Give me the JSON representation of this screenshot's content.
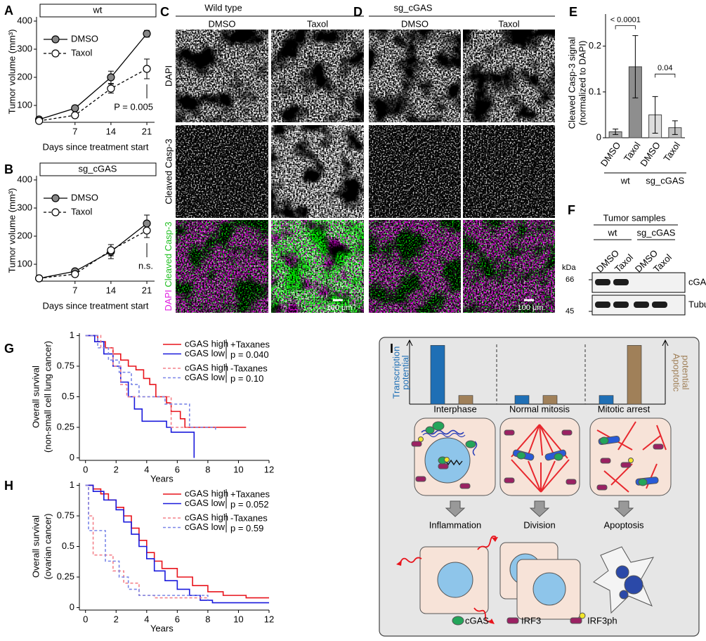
{
  "chart_data": [
    {
      "label": "A",
      "type": "line",
      "title": "wt",
      "xlabel": "Days since treatment start",
      "ylabel": "Tumor volume (mm³)",
      "x": [
        0,
        7,
        14,
        21
      ],
      "xlim": [
        -0.5,
        22.5
      ],
      "xticks": [
        7,
        14,
        21
      ],
      "ylim": [
        40,
        400
      ],
      "yticks": [
        100,
        200,
        300,
        400
      ],
      "series": [
        {
          "name": "DMSO",
          "color": "#000000",
          "marker_fill": "#888888",
          "line_style": "solid",
          "values": [
            50,
            90,
            200,
            355
          ],
          "errors": [
            6,
            10,
            22,
            12
          ]
        },
        {
          "name": "Taxol",
          "color": "#000000",
          "marker_fill": "#ffffff",
          "line_style": "dashed",
          "values": [
            45,
            65,
            160,
            230
          ],
          "errors": [
            5,
            6,
            16,
            35
          ]
        }
      ],
      "annotation": "P = 0.005"
    },
    {
      "label": "B",
      "type": "line",
      "title": "sg_cGAS",
      "xlabel": "Days since treatment start",
      "ylabel": "Tumor volume (mm³)",
      "x": [
        0,
        7,
        14,
        21
      ],
      "xlim": [
        -0.5,
        22.5
      ],
      "xticks": [
        7,
        14,
        21
      ],
      "ylim": [
        40,
        400
      ],
      "yticks": [
        100,
        200,
        300,
        400
      ],
      "series": [
        {
          "name": "DMSO",
          "color": "#000000",
          "marker_fill": "#888888",
          "line_style": "solid",
          "values": [
            50,
            75,
            145,
            245
          ],
          "errors": [
            5,
            8,
            25,
            30
          ]
        },
        {
          "name": "Taxol",
          "color": "#000000",
          "marker_fill": "#ffffff",
          "line_style": "dashed",
          "values": [
            50,
            65,
            150,
            220
          ],
          "errors": [
            5,
            6,
            20,
            25
          ]
        }
      ],
      "annotation": "n.s."
    },
    {
      "label": "E",
      "type": "bar",
      "ylabel": [
        "Cleaved Casp-3 signal",
        "(normalized to DAPI)"
      ],
      "categories": [
        "DMSO",
        "Taxol",
        "DMSO",
        "Taxol"
      ],
      "groups": [
        "wt",
        "sg_cGAS"
      ],
      "values": [
        0.013,
        0.155,
        0.05,
        0.022
      ],
      "errors": [
        0.006,
        0.068,
        0.04,
        0.015
      ],
      "colors": [
        "#aaaaaa",
        "#8e8e8e",
        "#dddddd",
        "#c2c2c2"
      ],
      "ylim": [
        0,
        0.27
      ],
      "yticks": [
        0,
        0.1,
        0.2
      ],
      "annotations": [
        "< 0.0001",
        "0.04"
      ]
    },
    {
      "label": "G",
      "type": "survival",
      "xlabel": "Years",
      "ylabel": [
        "Overall survival",
        "(non-small cell lung cancer)"
      ],
      "xlim": [
        -0.4,
        12
      ],
      "xticks": [
        0,
        2,
        4,
        6,
        8,
        10,
        12
      ],
      "ylim": [
        -0.02,
        1.02
      ],
      "yticks": [
        0,
        0.25,
        0.5,
        0.75,
        1
      ],
      "series": [
        {
          "name": "cGAS high",
          "color": "#e8141c",
          "line_style": "solid",
          "x": [
            0,
            0.8,
            1.3,
            1.8,
            2.3,
            2.8,
            3.3,
            3.8,
            4.2,
            4.6,
            5.3,
            5.6,
            6.2,
            6.5,
            10.5
          ],
          "values": [
            1,
            0.95,
            0.9,
            0.85,
            0.8,
            0.75,
            0.72,
            0.65,
            0.6,
            0.5,
            0.45,
            0.38,
            0.32,
            0.25,
            0.25
          ]
        },
        {
          "name": "cGAS low",
          "color": "#1a1adc",
          "line_style": "solid",
          "x": [
            0,
            0.6,
            1.2,
            1.8,
            2.3,
            2.8,
            3.2,
            3.7,
            5.3,
            5.6,
            7.0,
            7.1
          ],
          "values": [
            1,
            0.95,
            0.85,
            0.75,
            0.62,
            0.5,
            0.4,
            0.3,
            0.25,
            0.21,
            0.21,
            0
          ]
        },
        {
          "name": "cGAS high",
          "color": "#f4818a",
          "line_style": "dashed",
          "x": [
            0,
            1,
            1.8,
            2.3,
            2.7,
            5.5,
            5.6,
            8
          ],
          "values": [
            1,
            0.9,
            0.75,
            0.6,
            0.5,
            0.5,
            0.25,
            0.25
          ]
        },
        {
          "name": "cGAS low",
          "color": "#7a86e8",
          "line_style": "dashed",
          "x": [
            0,
            0.8,
            1.5,
            2.2,
            3,
            3.5,
            5.2,
            6.8,
            8.5
          ],
          "values": [
            1,
            0.9,
            0.8,
            0.7,
            0.6,
            0.5,
            0.44,
            0.25,
            0.22
          ]
        }
      ],
      "legend_groups": [
        {
          "name": "+Taxanes",
          "p": "p = 0.040"
        },
        {
          "name": "-Taxanes",
          "p": "p = 0.10"
        }
      ]
    },
    {
      "label": "H",
      "type": "survival",
      "xlabel": "Years",
      "ylabel": [
        "Overall survival",
        "(ovarian cancer)"
      ],
      "xlim": [
        -0.4,
        12
      ],
      "xticks": [
        0,
        2,
        4,
        6,
        8,
        10,
        12
      ],
      "ylim": [
        -0.02,
        1.02
      ],
      "yticks": [
        0,
        0.25,
        0.5,
        0.75,
        1
      ],
      "series": [
        {
          "name": "cGAS high",
          "color": "#e8141c",
          "line_style": "solid",
          "x": [
            0,
            0.5,
            1,
            1.5,
            2,
            2.5,
            3,
            3.5,
            4,
            4.5,
            5,
            6,
            7,
            8,
            9,
            10.5,
            12
          ],
          "values": [
            1,
            0.97,
            0.93,
            0.88,
            0.82,
            0.75,
            0.65,
            0.55,
            0.45,
            0.38,
            0.32,
            0.25,
            0.18,
            0.13,
            0.1,
            0.08,
            0.08
          ]
        },
        {
          "name": "cGAS low",
          "color": "#1a1adc",
          "line_style": "solid",
          "x": [
            0,
            0.5,
            1.2,
            2,
            2.5,
            3,
            3.5,
            4,
            4.5,
            5.2,
            6,
            6.8,
            7.5,
            8.3,
            12
          ],
          "values": [
            1,
            0.95,
            0.88,
            0.8,
            0.7,
            0.6,
            0.5,
            0.4,
            0.3,
            0.22,
            0.15,
            0.1,
            0.06,
            0.04,
            0.04
          ]
        },
        {
          "name": "cGAS high",
          "color": "#f4818a",
          "line_style": "dashed",
          "x": [
            0,
            0.2,
            0.5,
            1.8,
            2.5,
            3.5,
            4.5,
            8
          ],
          "values": [
            1,
            0.75,
            0.43,
            0.3,
            0.2,
            0.1,
            0.08,
            0.08
          ]
        },
        {
          "name": "cGAS low",
          "color": "#7a86e8",
          "line_style": "dashed",
          "x": [
            0,
            0.2,
            1.3,
            2.2,
            2.8,
            3.5,
            8
          ],
          "values": [
            1,
            0.63,
            0.38,
            0.25,
            0.15,
            0.1,
            0.06
          ]
        }
      ],
      "legend_groups": [
        {
          "name": "+Taxanes",
          "p": "p = 0.052"
        },
        {
          "name": "-Taxanes",
          "p": "p = 0.59"
        }
      ]
    }
  ],
  "panels": {
    "C": {
      "label": "C",
      "title": "Wild type",
      "columns": [
        "DMSO",
        "Taxol"
      ],
      "rows": [
        "DAPI",
        "Cleaved Casp-3"
      ],
      "merge_label": [
        "DAPI",
        "Cleaved Casp-3"
      ],
      "scale_bar": "100 μm"
    },
    "D": {
      "label": "D",
      "title": "sg_cGAS",
      "columns": [
        "DMSO",
        "Taxol"
      ],
      "scale_bar": "100 μm"
    },
    "F": {
      "label": "F",
      "title": "Tumor samples",
      "groups": [
        "wt",
        "sg_cGAS"
      ],
      "lanes": [
        "DMSO",
        "Taxol",
        "DMSO",
        "Taxol"
      ],
      "marker_unit": "kDa",
      "markers": [
        "66",
        "45"
      ],
      "bands": [
        "cGAS",
        "Tubulin"
      ]
    },
    "I": {
      "label": "I",
      "transcription_label": [
        "Transcription",
        "potential"
      ],
      "apoptotic_label": [
        "Apoptotic",
        "potential"
      ],
      "phases": [
        "Interphase",
        "Normal mitosis",
        "Mitotic arrest"
      ],
      "transcription": [
        0.95,
        0.14,
        0.14
      ],
      "apoptotic": [
        0.14,
        0.14,
        0.95
      ],
      "ylim": [
        0,
        1
      ],
      "colors": {
        "transcription": "#1f6fb5",
        "apoptotic": "#a08059"
      },
      "outcomes": [
        "Inflammation",
        "Division",
        "Apoptosis"
      ],
      "legend": [
        "cGAS",
        "IRF3",
        "IRF3ph"
      ]
    }
  }
}
